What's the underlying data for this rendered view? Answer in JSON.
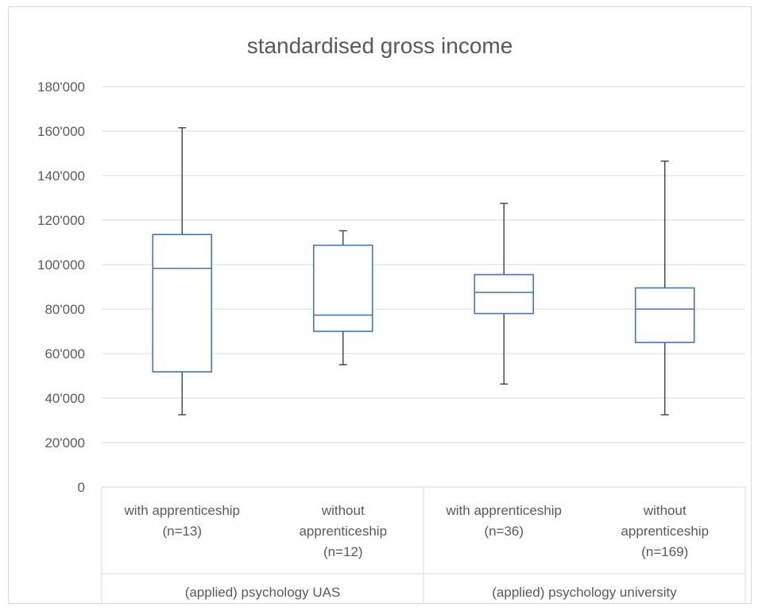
{
  "chart_data": {
    "type": "box",
    "title": "standardised gross income",
    "ylim": [
      0,
      180000
    ],
    "y_ticks": [
      {
        "value": 0,
        "label": "0"
      },
      {
        "value": 20000,
        "label": "20'000"
      },
      {
        "value": 40000,
        "label": "40'000"
      },
      {
        "value": 60000,
        "label": "60'000"
      },
      {
        "value": 80000,
        "label": "80'000"
      },
      {
        "value": 100000,
        "label": "100'000"
      },
      {
        "value": 120000,
        "label": "120'000"
      },
      {
        "value": 140000,
        "label": "140'000"
      },
      {
        "value": 160000,
        "label": "160'000"
      },
      {
        "value": 180000,
        "label": "180'000"
      }
    ],
    "grid": true,
    "groups": [
      {
        "label": "(applied) psychology UAS",
        "categories": [
          {
            "label_lines": [
              "with apprenticeship",
              "(n=13)"
            ],
            "min": 32500,
            "q1": 51800,
            "median": 98300,
            "q3": 113500,
            "max": 161500
          },
          {
            "label_lines": [
              "without",
              "apprenticeship",
              "(n=12)"
            ],
            "min": 55000,
            "q1": 70000,
            "median": 77300,
            "q3": 108700,
            "max": 115200
          }
        ]
      },
      {
        "label": "(applied) psychology university",
        "categories": [
          {
            "label_lines": [
              "with apprenticeship",
              "(n=36)"
            ],
            "min": 46300,
            "q1": 78000,
            "median": 87500,
            "q3": 95500,
            "max": 127500
          },
          {
            "label_lines": [
              "without",
              "apprenticeship",
              "(n=169)"
            ],
            "min": 32500,
            "q1": 65000,
            "median": 80000,
            "q3": 89500,
            "max": 146500
          }
        ]
      }
    ],
    "colors": {
      "box": "#4472c4",
      "whisker": "#404040",
      "grid": "#d9d9d9",
      "text": "#595959"
    }
  }
}
